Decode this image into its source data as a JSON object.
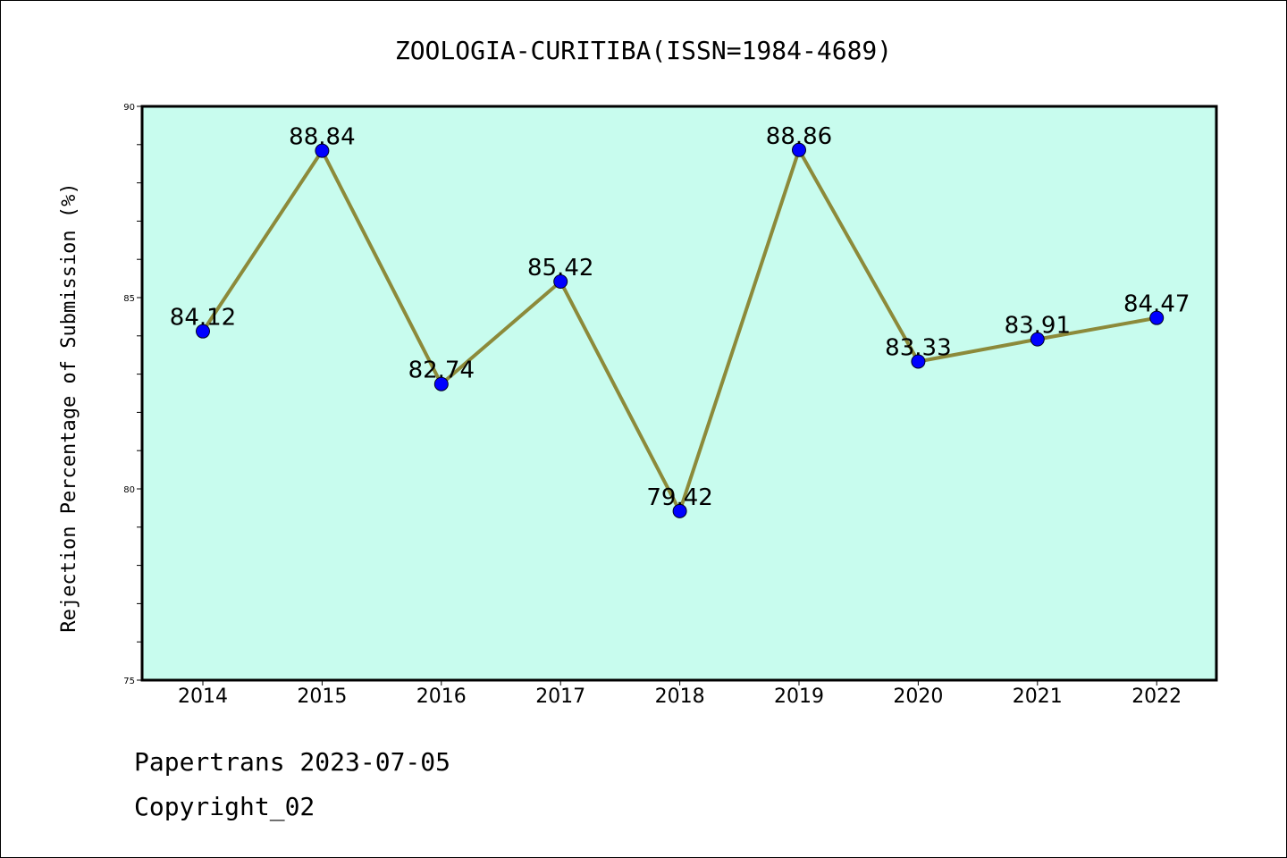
{
  "chart_data": {
    "type": "line",
    "title": "ZOOLOGIA-CURITIBA(ISSN=1984-4689)",
    "xlabel": "",
    "ylabel": "Rejection Percentage of Submission (%)",
    "categories": [
      "2014",
      "2015",
      "2016",
      "2017",
      "2018",
      "2019",
      "2020",
      "2021",
      "2022"
    ],
    "series": [
      {
        "values": [
          84.12,
          88.84,
          82.74,
          85.42,
          79.42,
          88.86,
          83.33,
          83.91,
          84.47
        ],
        "labels": [
          "84.12",
          "88.84",
          "82.74",
          "85.42",
          "79.42",
          "88.86",
          "83.33",
          "83.91",
          "84.47"
        ],
        "line_color": "#8c8a3a",
        "marker_color": "#0000ff"
      }
    ],
    "ylim": [
      75,
      90
    ],
    "yticks": [
      "75",
      "80",
      "85",
      "90"
    ],
    "grid": false,
    "plot_background": "#c8fcee"
  },
  "footer": {
    "line1": "Papertrans 2023-07-05",
    "line2": "Copyright_02"
  }
}
